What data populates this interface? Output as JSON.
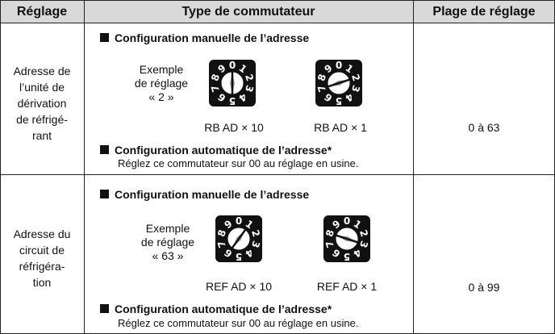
{
  "table": {
    "header": [
      "Réglage",
      "Type de commutateur",
      "Plage de réglage"
    ],
    "dial_digits": [
      "0",
      "1",
      "2",
      "3",
      "4",
      "5",
      "6",
      "7",
      "8",
      "9"
    ],
    "rows": [
      {
        "setting": [
          "Adresse de",
          "l’unité de",
          "dérivation",
          "de réfrigé-",
          "rant"
        ],
        "manual_title": "Configuration manuelle de l’adresse",
        "example": [
          "Exemple",
          "de réglage",
          "« 2 »"
        ],
        "dial_labels": [
          "RB AD × 10",
          "RB AD × 1"
        ],
        "auto_title": "Configuration automatique de l’adresse*",
        "auto_note": "Réglez ce commutateur sur 00 au réglage en usine.",
        "range": "0 à 63"
      },
      {
        "setting": [
          "Adresse du",
          "circuit de",
          "réfrigéra-",
          "tion"
        ],
        "manual_title": "Configuration manuelle de l’adresse",
        "example": [
          "Exemple",
          "de réglage",
          "« 63 »"
        ],
        "dial_labels": [
          "REF AD × 10",
          "REF AD × 1"
        ],
        "auto_title": "Configuration automatique de l’adresse*",
        "auto_note": "Réglez ce commutateur sur 00 au réglage en usine.",
        "range": "0 à 99"
      }
    ]
  }
}
